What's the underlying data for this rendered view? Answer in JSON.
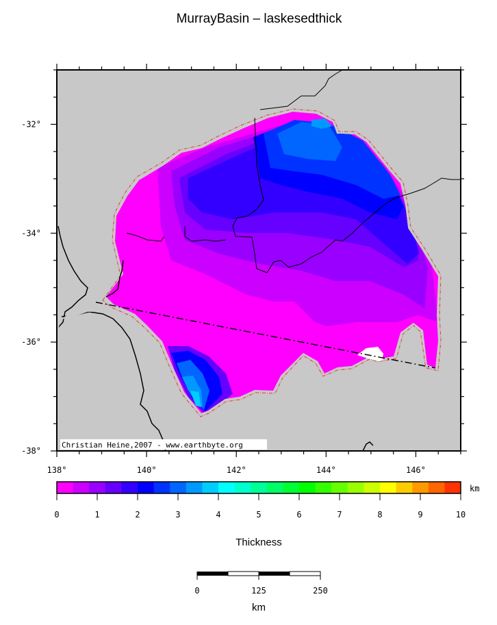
{
  "title": "MurrayBasin – laskesedthick",
  "credit": "Christian Heine,2007 - www.earthbyte.org",
  "map": {
    "lon_range": [
      138,
      147
    ],
    "lat_range": [
      -38,
      -31
    ],
    "lon_ticks": [
      "138°",
      "140°",
      "142°",
      "144°",
      "146°"
    ],
    "lat_ticks": [
      "-32°",
      "-34°",
      "-36°",
      "-38°"
    ],
    "land_color": "#c8c8c8"
  },
  "colorbar": {
    "unit": "km",
    "label": "Thickness",
    "tick_labels": [
      "0",
      "1",
      "2",
      "3",
      "4",
      "5",
      "6",
      "7",
      "8",
      "9",
      "10"
    ],
    "colors": [
      "#ff00ff",
      "#cc00ff",
      "#9900ff",
      "#6600ff",
      "#3300ff",
      "#0000ff",
      "#0033ff",
      "#0066ff",
      "#0099ff",
      "#00ccff",
      "#00ffff",
      "#00ffcc",
      "#00ff99",
      "#00ff66",
      "#00ff33",
      "#00ff00",
      "#33ff00",
      "#66ff00",
      "#99ff00",
      "#ccff00",
      "#ffff00",
      "#ffcc00",
      "#ff9900",
      "#ff6600",
      "#ff3300"
    ]
  },
  "scale_bar": {
    "tick_labels": [
      "0",
      "125",
      "250"
    ],
    "unit": "km"
  }
}
